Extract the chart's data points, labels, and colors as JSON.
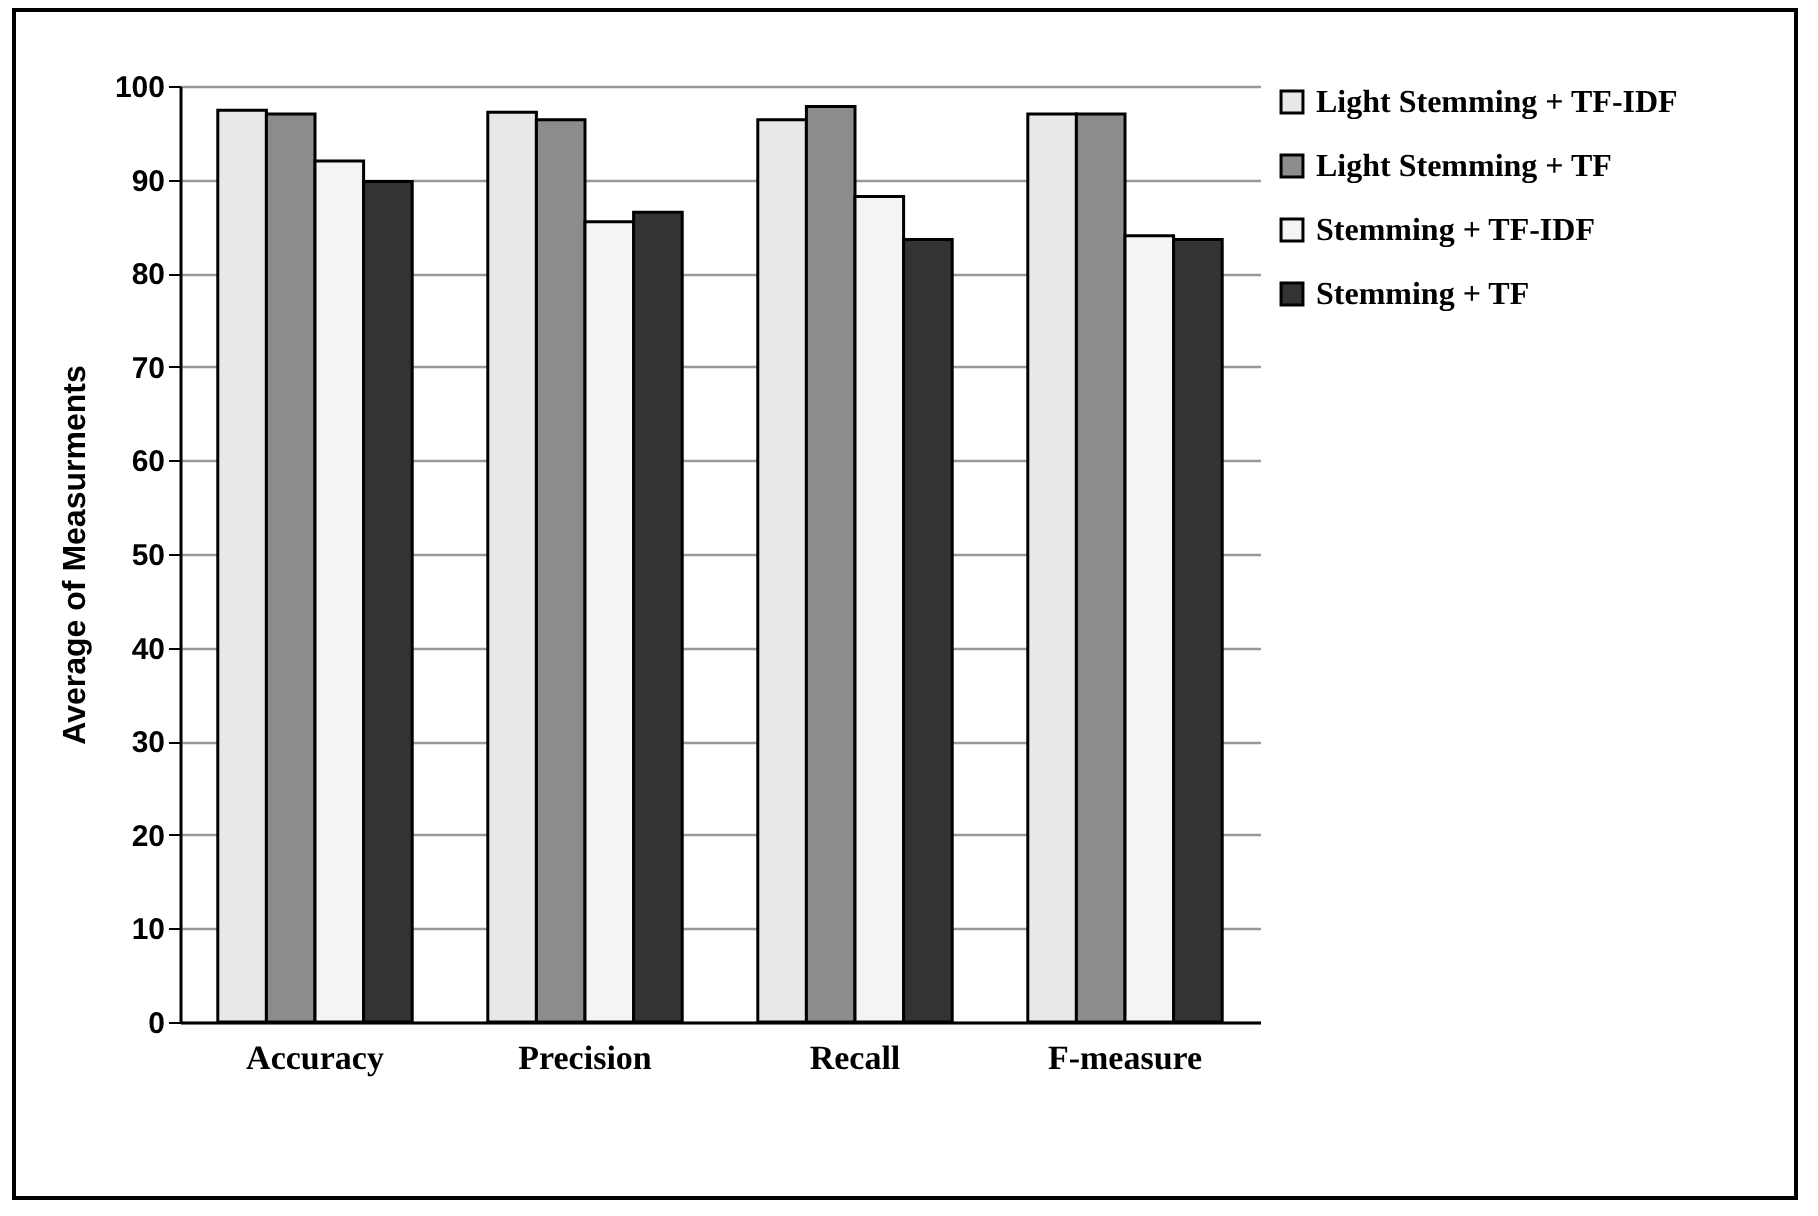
{
  "chart_data": {
    "type": "bar",
    "ylabel": "Average of Measurments",
    "categories": [
      "Accuracy",
      "Precision",
      "Recall",
      "F-measure"
    ],
    "series": [
      {
        "name": "Light Stemming + TF-IDF",
        "color": "#e8e8e8",
        "values": [
          97.4,
          97.2,
          96.4,
          97
        ]
      },
      {
        "name": "Light Stemming + TF",
        "color": "#8c8c8c",
        "values": [
          97,
          96.4,
          97.8,
          97
        ]
      },
      {
        "name": "Stemming + TF-IDF",
        "color": "#f4f4f4",
        "values": [
          92,
          85.5,
          88.2,
          84
        ]
      },
      {
        "name": "Stemming + TF",
        "color": "#333333",
        "values": [
          89.8,
          86.5,
          83.6,
          83.6
        ]
      }
    ],
    "ylim": [
      0,
      100
    ],
    "yticks": [
      0,
      10,
      20,
      30,
      40,
      50,
      60,
      70,
      80,
      90,
      100
    ],
    "grid": "y",
    "legend": "right"
  }
}
